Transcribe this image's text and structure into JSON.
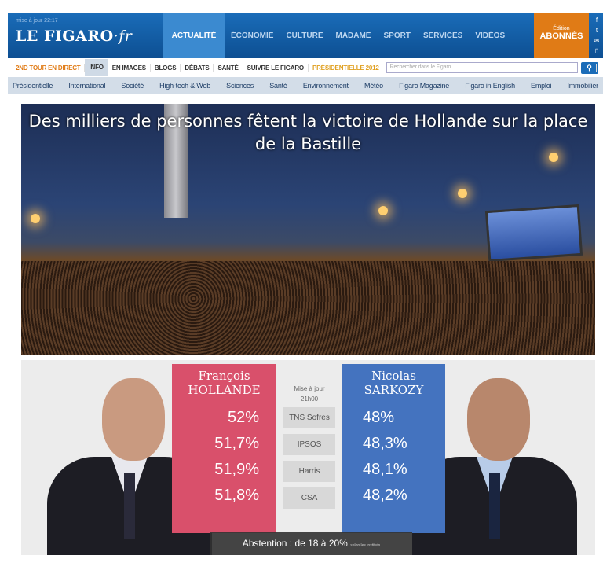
{
  "header": {
    "update": "mise à jour 22:17",
    "logo": "LE FIGARO",
    "logo_suffix": "·fr",
    "nav": [
      "ACTUALITÉ",
      "ÉCONOMIE",
      "CULTURE",
      "MADAME",
      "SPORT",
      "SERVICES",
      "VIDÉOS"
    ],
    "abonnes_small": "Édition",
    "abonnes": "ABONNÉS",
    "social": [
      "f",
      "t",
      "✉",
      "▯"
    ]
  },
  "subnav": {
    "live": "2ND TOUR EN DIRECT",
    "items": [
      "INFO",
      "EN IMAGES",
      "BLOGS",
      "DÉBATS",
      "SANTÉ",
      "SUIVRE LE FIGARO"
    ],
    "pres": "PRÉSIDENTIELLE 2012",
    "search_placeholder": "Rechercher dans le Figaro",
    "search_icon": "search-icon"
  },
  "sections": [
    "Présidentielle",
    "International",
    "Société",
    "High-tech & Web",
    "Sciences",
    "Santé",
    "Environnement",
    "Météo",
    "Figaro Magazine",
    "Figaro in English",
    "Emploi",
    "Immobilier"
  ],
  "hero": {
    "title": "Des milliers de personnes fêtent la victoire de Hollande sur la place de la Bastille"
  },
  "results": {
    "hollande": {
      "first": "François",
      "last": "HOLLANDE",
      "values": [
        "52%",
        "51,7%",
        "51,9%",
        "51,8%"
      ],
      "color": "#d9506b"
    },
    "sarkozy": {
      "first": "Nicolas",
      "last": "SARKOZY",
      "values": [
        "48%",
        "48,3%",
        "48,1%",
        "48,2%"
      ],
      "color": "#4473bf"
    },
    "update_label": "Mise à jour",
    "update_time": "21h00",
    "institutes": [
      "TNS Sofres",
      "IPSOS",
      "Harris",
      "CSA"
    ],
    "abstention": "Abstention : de 18 à 20%",
    "abstention_note": "selon les instituts"
  }
}
